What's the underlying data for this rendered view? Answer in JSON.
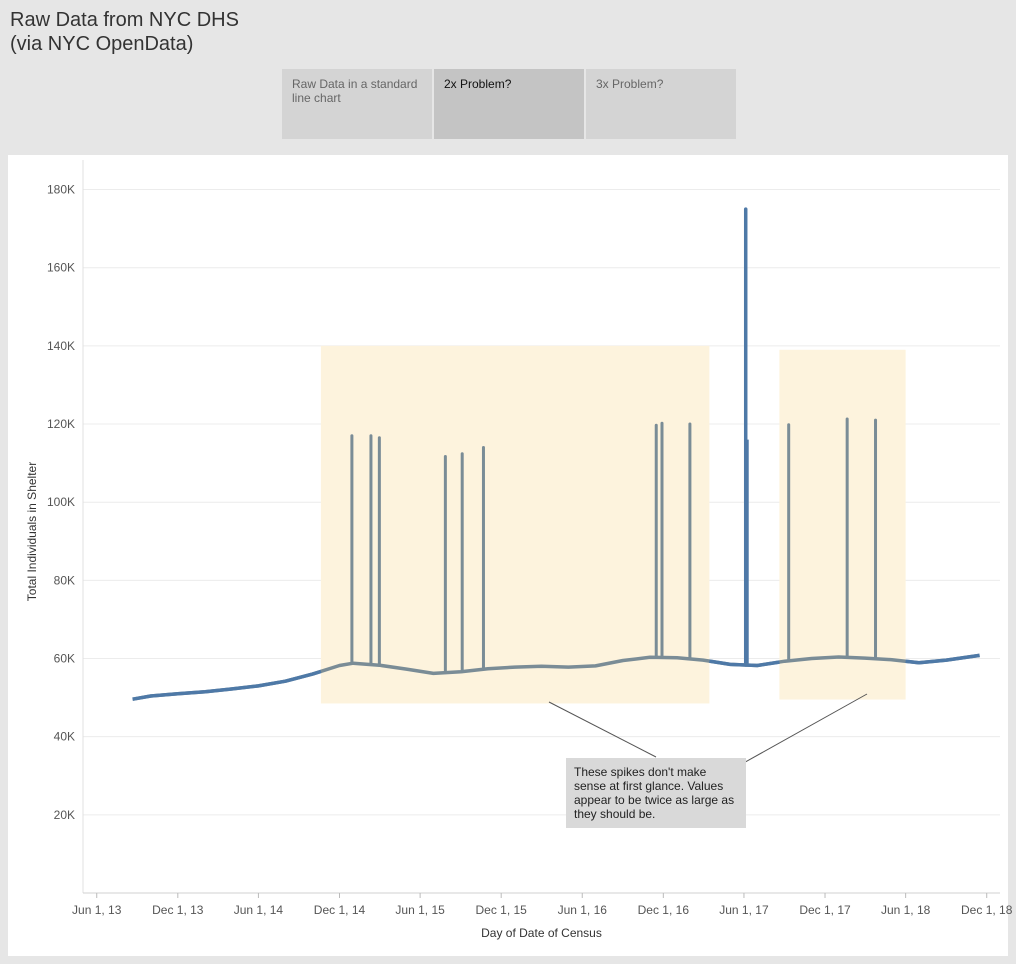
{
  "title": {
    "line1": "Raw Data from NYC DHS",
    "line2": "(via NYC OpenData)"
  },
  "tabs": [
    {
      "label": "Raw Data in a standard line chart",
      "active": false
    },
    {
      "label": "2x Problem?",
      "active": true
    },
    {
      "label": "3x Problem?",
      "active": false
    }
  ],
  "annotation": "These spikes don't make sense at first glance. Values appear to be twice as large as they should be.",
  "colors": {
    "main_line": "#4e79a7",
    "spike_line": "#7a8c96",
    "highlight": "#fdf3dd",
    "grid": "#ececec"
  },
  "chart_data": {
    "type": "line",
    "title": "",
    "xlabel": "Day of Date of Census",
    "ylabel": "Total Individuals in Shelter",
    "ylim": [
      0,
      185000
    ],
    "yticks": [
      20000,
      40000,
      60000,
      80000,
      100000,
      120000,
      140000,
      160000,
      180000
    ],
    "ytick_labels": [
      "20K",
      "40K",
      "60K",
      "80K",
      "100K",
      "120K",
      "140K",
      "160K",
      "180K"
    ],
    "xlim": [
      "2013-05-01",
      "2018-12-31"
    ],
    "xticks": [
      "2013-06-01",
      "2013-12-01",
      "2014-06-01",
      "2014-12-01",
      "2015-06-01",
      "2015-12-01",
      "2016-06-01",
      "2016-12-01",
      "2017-06-01",
      "2017-12-01",
      "2018-06-01",
      "2018-12-01"
    ],
    "xtick_labels": [
      "Jun 1, 13",
      "Dec 1, 13",
      "Jun 1, 14",
      "Dec 1, 14",
      "Jun 1, 15",
      "Dec 1, 15",
      "Jun 1, 16",
      "Dec 1, 16",
      "Jun 1, 17",
      "Dec 1, 17",
      "Jun 1, 18",
      "Dec 1, 18"
    ],
    "series": [
      {
        "name": "Total Individuals in Shelter",
        "x": [
          "2013-08-21",
          "2013-10-01",
          "2013-12-01",
          "2014-02-01",
          "2014-04-01",
          "2014-06-01",
          "2014-08-01",
          "2014-10-01",
          "2014-12-01",
          "2015-01-01",
          "2015-03-01",
          "2015-05-01",
          "2015-07-01",
          "2015-09-01",
          "2015-11-01",
          "2016-01-01",
          "2016-03-01",
          "2016-05-01",
          "2016-07-01",
          "2016-09-01",
          "2016-11-01",
          "2017-01-01",
          "2017-03-01",
          "2017-05-01",
          "2017-07-01",
          "2017-09-01",
          "2017-11-01",
          "2018-01-01",
          "2018-03-01",
          "2018-05-01",
          "2018-07-01",
          "2018-09-01",
          "2018-11-15"
        ],
        "values": [
          49600,
          50400,
          51000,
          51500,
          52200,
          53000,
          54200,
          56000,
          58200,
          58800,
          58300,
          57300,
          56200,
          56600,
          57400,
          57800,
          58000,
          57800,
          58100,
          59500,
          60300,
          60200,
          59600,
          58500,
          58200,
          59300,
          60000,
          60400,
          60100,
          59700,
          58900,
          59600,
          60800
        ]
      }
    ],
    "spikes": [
      {
        "x": "2014-12-29",
        "value": 117000
      },
      {
        "x": "2015-02-10",
        "value": 117000
      },
      {
        "x": "2015-03-01",
        "value": 116500
      },
      {
        "x": "2015-07-28",
        "value": 111700
      },
      {
        "x": "2015-09-04",
        "value": 112400
      },
      {
        "x": "2015-10-22",
        "value": 114000
      },
      {
        "x": "2016-11-15",
        "value": 119700
      },
      {
        "x": "2016-11-28",
        "value": 120200
      },
      {
        "x": "2017-01-30",
        "value": 120000
      },
      {
        "x": "2017-06-05",
        "value": 175000
      },
      {
        "x": "2017-09-10",
        "value": 119800
      },
      {
        "x": "2018-01-20",
        "value": 121300
      },
      {
        "x": "2018-03-25",
        "value": 121000
      }
    ],
    "highlight_regions": [
      {
        "x0": "2014-10-20",
        "x1": "2017-03-15",
        "y0": 48500,
        "y1": 140000
      },
      {
        "x0": "2017-08-20",
        "x1": "2018-06-01",
        "y0": 49500,
        "y1": 139000
      }
    ]
  }
}
